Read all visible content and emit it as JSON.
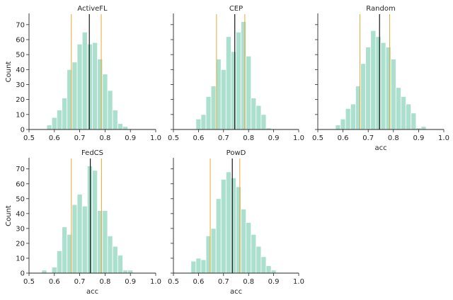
{
  "chart_data": {
    "type": "bar",
    "subtype": "histogram-facet-grid",
    "xlim": [
      0.5,
      1.0
    ],
    "ylim": [
      0,
      77
    ],
    "xticks": [
      0.5,
      0.6,
      0.7,
      0.8,
      0.9,
      1.0
    ],
    "xtick_labels": [
      "0.5",
      "0.6",
      "0.7",
      "0.8",
      "0.9",
      "1.0"
    ],
    "yticks": [
      0,
      10,
      20,
      30,
      40,
      50,
      60,
      70
    ],
    "ytick_labels": [
      "0",
      "10",
      "20",
      "30",
      "40",
      "50",
      "60",
      "70"
    ],
    "ylabel": "Count",
    "xlabel": "acc",
    "colors": {
      "bar": "#abdfce",
      "mean": "#000000",
      "interval": "#e8a838",
      "axis": "#262626"
    },
    "panels": [
      {
        "title": "ActiveFL",
        "bin_start": 0.57,
        "bin_width": 0.02,
        "counts": [
          3,
          8,
          13,
          21,
          40,
          45,
          57,
          65,
          57,
          58,
          47,
          37,
          26,
          13,
          4,
          2
        ],
        "mean": 0.738,
        "lower": 0.667,
        "upper": 0.785
      },
      {
        "title": "CEP",
        "bin_start": 0.59,
        "bin_width": 0.02,
        "counts": [
          7,
          10,
          22,
          29,
          47,
          40,
          62,
          52,
          65,
          72,
          49,
          21,
          16,
          10,
          1
        ],
        "mean": 0.745,
        "lower": 0.672,
        "upper": 0.785
      },
      {
        "title": "Random",
        "bin_start": 0.57,
        "bin_width": 0.02,
        "counts": [
          3,
          7,
          14,
          17,
          29,
          44,
          55,
          66,
          62,
          58,
          55,
          47,
          28,
          22,
          17,
          11,
          1,
          2
        ],
        "mean": 0.745,
        "lower": 0.667,
        "upper": 0.785
      },
      {
        "title": "FedCS",
        "bin_start": 0.55,
        "bin_width": 0.02,
        "counts": [
          2,
          0,
          4,
          15,
          31,
          26,
          46,
          53,
          45,
          72,
          69,
          42,
          42,
          25,
          18,
          12,
          2,
          2
        ],
        "mean": 0.742,
        "lower": 0.667,
        "upper": 0.786
      },
      {
        "title": "PowD",
        "bin_start": 0.57,
        "bin_width": 0.02,
        "counts": [
          8,
          10,
          9,
          25,
          30,
          50,
          63,
          68,
          64,
          58,
          43,
          34,
          26,
          18,
          11,
          5,
          2
        ],
        "mean": 0.735,
        "lower": 0.647,
        "upper": 0.765
      }
    ]
  }
}
